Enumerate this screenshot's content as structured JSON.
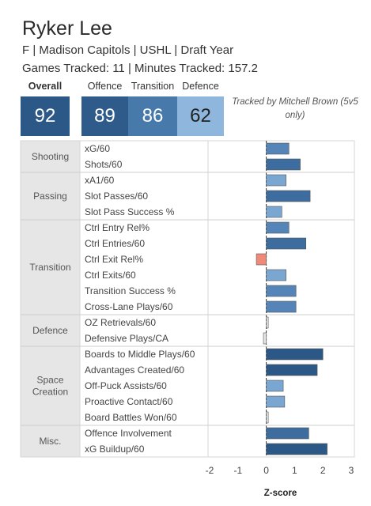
{
  "player": {
    "name": "Ryker Lee",
    "info": "F | Madison Capitols | USHL | Draft Year",
    "tracking": "Games Tracked: 11 | Minutes Tracked: 157.2"
  },
  "scores": {
    "overall": {
      "label": "Overall",
      "value": "92",
      "color": "#2b5886"
    },
    "offence": {
      "label": "Offence",
      "value": "89",
      "color": "#2e5b89"
    },
    "transition": {
      "label": "Transition",
      "value": "86",
      "color": "#4779ab"
    },
    "defence": {
      "label": "Defence",
      "value": "62",
      "color": "#8fb7dd"
    }
  },
  "credit": "Tracked by Mitchell Brown (5v5 only)",
  "chart_data": {
    "type": "bar",
    "orientation": "horizontal",
    "xlabel": "Z-score",
    "xlim": [
      -2,
      3
    ],
    "x_ticks": [
      -2,
      -1,
      0,
      1,
      2,
      3
    ],
    "groups": [
      {
        "name": "Shooting",
        "metrics": [
          {
            "label": "xG/60",
            "value": 0.8
          },
          {
            "label": "Shots/60",
            "value": 1.2
          }
        ]
      },
      {
        "name": "Passing",
        "metrics": [
          {
            "label": "xA1/60",
            "value": 0.7
          },
          {
            "label": "Slot Passes/60",
            "value": 1.55
          },
          {
            "label": "Slot Pass Success %",
            "value": 0.55
          }
        ]
      },
      {
        "name": "Transition",
        "metrics": [
          {
            "label": "Ctrl Entry Rel%",
            "value": 0.8
          },
          {
            "label": "Ctrl Entries/60",
            "value": 1.4
          },
          {
            "label": "Ctrl Exit Rel%",
            "value": -0.35
          },
          {
            "label": "Ctrl Exits/60",
            "value": 0.7
          },
          {
            "label": "Transition Success %",
            "value": 1.05
          },
          {
            "label": "Cross-Lane Plays/60",
            "value": 1.05
          }
        ]
      },
      {
        "name": "Defence",
        "metrics": [
          {
            "label": "OZ Retrievals/60",
            "value": 0.03
          },
          {
            "label": "Defensive Plays/CA",
            "value": -0.1
          }
        ]
      },
      {
        "name": "Space Creation",
        "metrics": [
          {
            "label": "Boards to Middle Plays/60",
            "value": 2.0
          },
          {
            "label": "Advantages Created/60",
            "value": 1.8
          },
          {
            "label": "Off-Puck Assists/60",
            "value": 0.6
          },
          {
            "label": "Proactive Contact/60",
            "value": 0.65
          },
          {
            "label": "Board Battles Won/60",
            "value": 0.05
          }
        ]
      },
      {
        "name": "Misc.",
        "metrics": [
          {
            "label": "Offence Involvement",
            "value": 1.5
          },
          {
            "label": "xG Buildup/60",
            "value": 2.15
          }
        ]
      }
    ]
  }
}
